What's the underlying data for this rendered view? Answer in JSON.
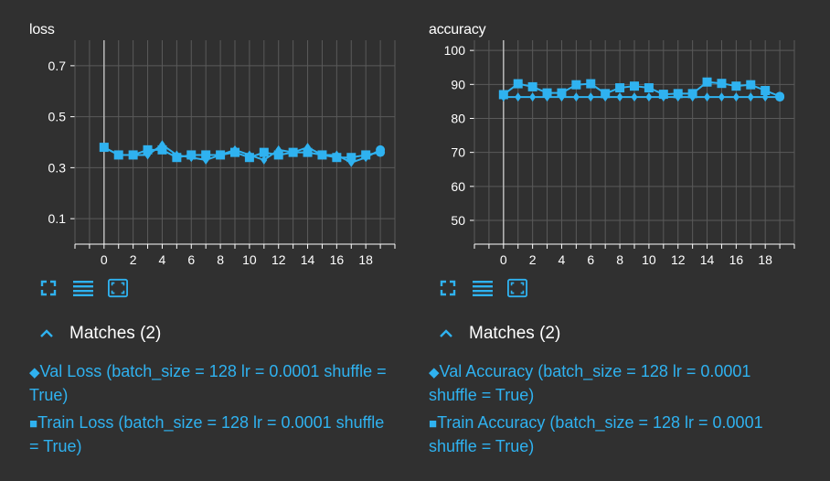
{
  "colors": {
    "accent": "#2fb2f0",
    "background": "#303030",
    "grid": "#5a5a5a",
    "text": "#ffffff"
  },
  "panels": [
    {
      "title": "loss",
      "matches_label": "Matches (2)",
      "legend": [
        {
          "symbol": "◆",
          "text": "Val Loss (batch_size = 128 lr = 0.0001 shuffle = True)"
        },
        {
          "symbol": "■",
          "text": "Train Loss (batch_size = 128 lr = 0.0001 shuffle = True)"
        }
      ],
      "toolbar_icons": [
        "expand-icon",
        "list-icon",
        "fit-screen-icon"
      ]
    },
    {
      "title": "accuracy",
      "matches_label": "Matches (2)",
      "legend": [
        {
          "symbol": "◆",
          "text": "Val Accuracy (batch_size = 128 lr = 0.0001 shuffle = True)"
        },
        {
          "symbol": "■",
          "text": "Train Accuracy (batch_size = 128 lr = 0.0001 shuffle = True)"
        }
      ],
      "toolbar_icons": [
        "expand-icon",
        "list-icon",
        "fit-screen-icon"
      ]
    }
  ],
  "chart_data": [
    {
      "type": "line",
      "title": "loss",
      "xlabel": "",
      "ylabel": "",
      "xlim": [
        -2,
        20
      ],
      "ylim": [
        0,
        0.8
      ],
      "xticks": [
        0,
        2,
        4,
        6,
        8,
        10,
        12,
        14,
        16,
        18
      ],
      "yticks": [
        0.1,
        0.3,
        0.5,
        0.7
      ],
      "grid": true,
      "x": [
        0,
        1,
        2,
        3,
        4,
        5,
        6,
        7,
        8,
        9,
        10,
        11,
        12,
        13,
        14,
        15,
        16,
        17,
        18,
        19
      ],
      "series": [
        {
          "name": "Val Loss",
          "marker": "diamond",
          "values": [
            0.38,
            0.35,
            0.35,
            0.35,
            0.39,
            0.35,
            0.34,
            0.33,
            0.35,
            0.37,
            0.35,
            0.33,
            0.37,
            0.36,
            0.38,
            0.35,
            0.35,
            0.32,
            0.34,
            0.37
          ]
        },
        {
          "name": "Train Loss",
          "marker": "square",
          "values": [
            0.38,
            0.35,
            0.35,
            0.37,
            0.37,
            0.34,
            0.35,
            0.35,
            0.35,
            0.36,
            0.34,
            0.36,
            0.35,
            0.36,
            0.36,
            0.35,
            0.34,
            0.34,
            0.35,
            0.36
          ]
        }
      ]
    },
    {
      "type": "line",
      "title": "accuracy",
      "xlabel": "",
      "ylabel": "",
      "xlim": [
        -2,
        20
      ],
      "ylim": [
        43,
        103
      ],
      "xticks": [
        0,
        2,
        4,
        6,
        8,
        10,
        12,
        14,
        16,
        18
      ],
      "yticks": [
        50,
        60,
        70,
        80,
        90,
        100
      ],
      "grid": true,
      "x": [
        0,
        1,
        2,
        3,
        4,
        5,
        6,
        7,
        8,
        9,
        10,
        11,
        12,
        13,
        14,
        15,
        16,
        17,
        18,
        19
      ],
      "series": [
        {
          "name": "Val Accuracy",
          "marker": "diamond",
          "values": [
            86.3,
            86.3,
            86.3,
            86.3,
            86.3,
            86.3,
            86.3,
            86.3,
            86.3,
            86.3,
            86.3,
            86.3,
            86.3,
            86.3,
            86.3,
            86.3,
            86.3,
            86.3,
            86.3,
            86.3
          ]
        },
        {
          "name": "Train Accuracy",
          "marker": "square",
          "values": [
            87,
            90.2,
            89.3,
            87.5,
            87.5,
            89.9,
            90.2,
            87.3,
            89,
            89.5,
            89,
            87.1,
            87.3,
            87.3,
            90.7,
            90.3,
            89.5,
            89.9,
            88.2,
            86.5
          ]
        }
      ]
    }
  ]
}
